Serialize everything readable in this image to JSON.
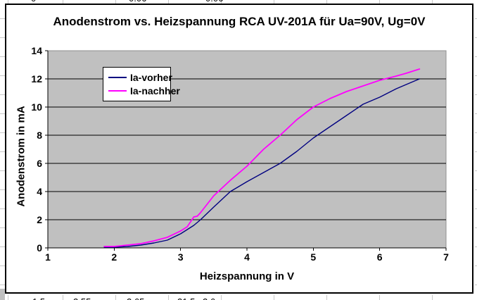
{
  "sheet": {
    "top_row_clipped_cells": [
      "0",
      "0.06",
      "0.06"
    ],
    "bottom_row_clipped_cells": [
      "1.5",
      "2.55",
      "2.65",
      "21.5",
      "2.6"
    ]
  },
  "chart_data": {
    "type": "line",
    "title": "Anodenstrom vs. Heizspannung RCA UV-201A für Ua=90V, Ug=0V",
    "xlabel": "Heizspannung in V",
    "ylabel": "Anodenstrom in mA",
    "xlim": [
      1,
      7
    ],
    "ylim": [
      0,
      14
    ],
    "xticks": [
      1,
      2,
      3,
      4,
      5,
      6,
      7
    ],
    "yticks": [
      0,
      2,
      4,
      6,
      8,
      10,
      12,
      14
    ],
    "grid": "horizontal",
    "plot_bg": "#c0c0c0",
    "plot_border": "#909090",
    "legend_position": "top-left",
    "x": [
      1.85,
      2.0,
      2.2,
      2.4,
      2.6,
      2.8,
      3.0,
      3.1,
      3.2,
      3.25,
      3.3,
      3.4,
      3.5,
      3.75,
      4.0,
      4.25,
      4.5,
      4.75,
      5.0,
      5.25,
      5.5,
      5.75,
      6.0,
      6.25,
      6.4,
      6.6
    ],
    "series": [
      {
        "name": "Ia-vorher",
        "color": "#000080",
        "values": [
          0.05,
          0.05,
          0.1,
          0.2,
          0.35,
          0.55,
          1.0,
          1.3,
          1.6,
          1.8,
          2.0,
          2.45,
          2.9,
          4.0,
          4.7,
          5.35,
          6.0,
          6.85,
          7.8,
          8.6,
          9.4,
          10.2,
          10.7,
          11.3,
          11.6,
          12.0
        ]
      },
      {
        "name": "Ia-nachher",
        "color": "#ff00ff",
        "values": [
          0.1,
          0.1,
          0.2,
          0.3,
          0.5,
          0.75,
          1.2,
          1.5,
          2.2,
          2.25,
          2.5,
          3.1,
          3.7,
          4.8,
          5.8,
          7.0,
          8.0,
          9.1,
          10.0,
          10.6,
          11.1,
          11.5,
          11.9,
          12.2,
          12.4,
          12.7
        ]
      }
    ]
  }
}
